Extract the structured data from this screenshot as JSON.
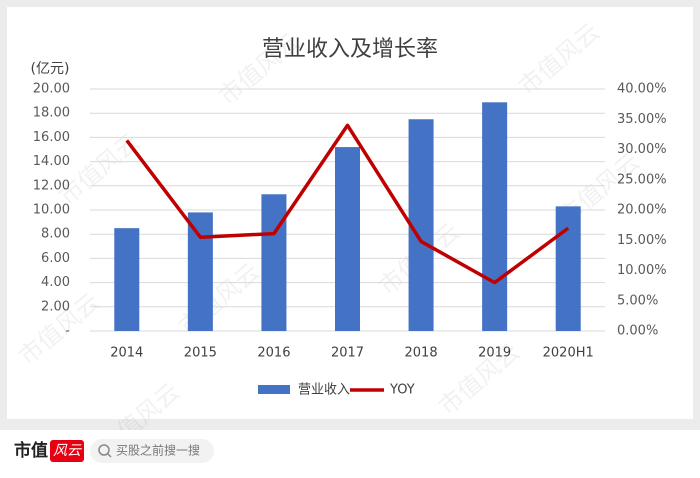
{
  "chart_data": {
    "type": "bar",
    "title": "营业收入及增长率",
    "ylabel": "(亿元)",
    "categories": [
      "2014",
      "2015",
      "2016",
      "2017",
      "2018",
      "2019",
      "2020H1"
    ],
    "series": [
      {
        "name": "营业收入",
        "type": "bar",
        "color": "#4472c4",
        "values": [
          8.5,
          9.8,
          11.3,
          15.2,
          17.5,
          18.9,
          10.3
        ]
      },
      {
        "name": "YOY",
        "type": "line",
        "axis": "y2",
        "color": "#c00000",
        "values": [
          31.5,
          15.5,
          16.1,
          34.0,
          14.8,
          8.0,
          17.0
        ]
      }
    ],
    "ylim": [
      0,
      20
    ],
    "yticks": [
      {
        "value": 0,
        "label": "-"
      },
      {
        "value": 2,
        "label": "2.00"
      },
      {
        "value": 4,
        "label": "4.00"
      },
      {
        "value": 6,
        "label": "6.00"
      },
      {
        "value": 8,
        "label": "8.00"
      },
      {
        "value": 10,
        "label": "10.00"
      },
      {
        "value": 12,
        "label": "12.00"
      },
      {
        "value": 14,
        "label": "14.00"
      },
      {
        "value": 16,
        "label": "16.00"
      },
      {
        "value": 18,
        "label": "18.00"
      },
      {
        "value": 20,
        "label": "20.00"
      }
    ],
    "y2lim": [
      0,
      40
    ],
    "y2ticks": [
      {
        "value": 0,
        "label": "0.00%"
      },
      {
        "value": 5,
        "label": "5.00%"
      },
      {
        "value": 10,
        "label": "10.00%"
      },
      {
        "value": 15,
        "label": "15.00%"
      },
      {
        "value": 20,
        "label": "20.00%"
      },
      {
        "value": 25,
        "label": "25.00%"
      },
      {
        "value": 30,
        "label": "30.00%"
      },
      {
        "value": 35,
        "label": "35.00%"
      },
      {
        "value": 40,
        "label": "40.00%"
      }
    ],
    "grid": true,
    "legend": "bottom"
  },
  "watermark": "市值风云",
  "footer": {
    "logo": "市值",
    "badge": "风云",
    "search": "买股之前搜一搜"
  }
}
